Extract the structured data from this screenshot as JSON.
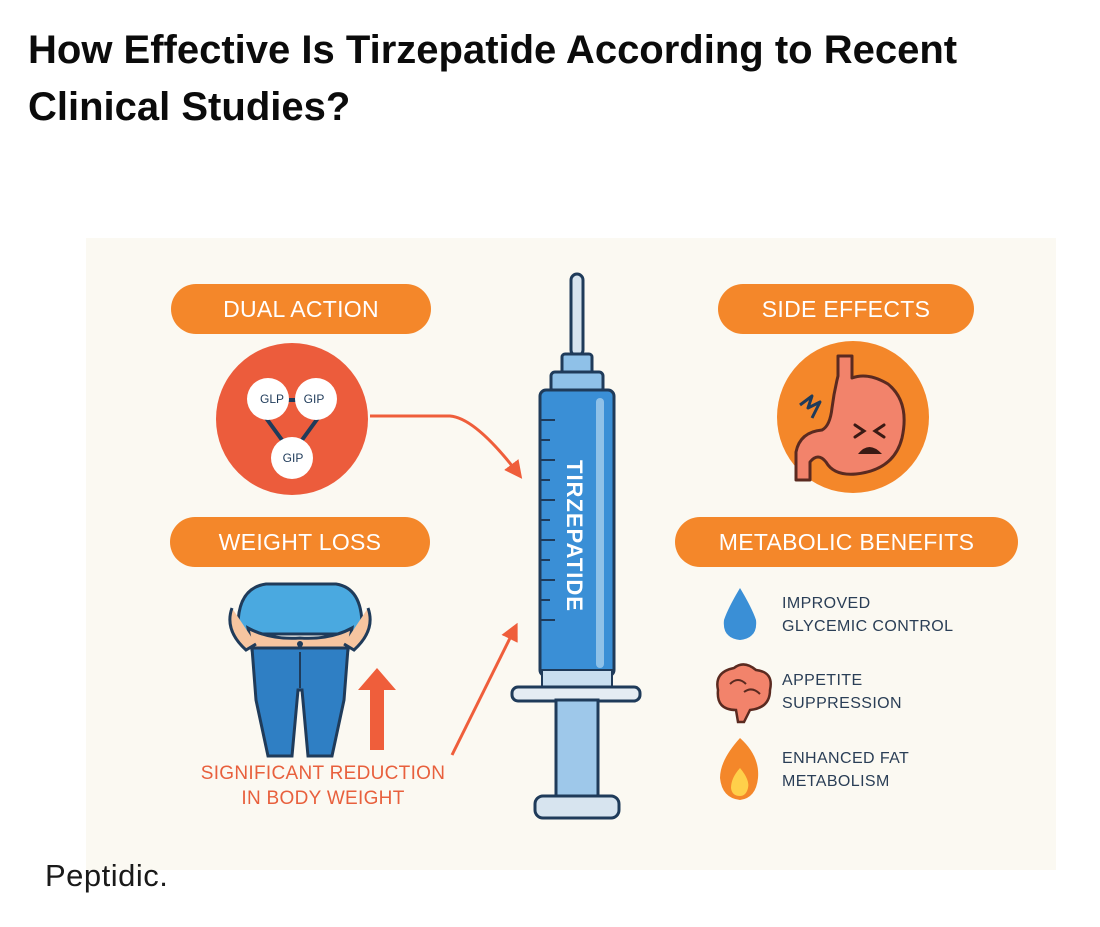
{
  "page": {
    "title": "How Effective Is Tirzepatide According to Recent Clinical Studies?",
    "brand": "Peptidic."
  },
  "infographic": {
    "dual_action": {
      "label": "DUAL ACTION",
      "nodes": [
        "GLP",
        "GIP",
        "GIP"
      ]
    },
    "side_effects": {
      "label": "SIDE EFFECTS"
    },
    "weight_loss": {
      "label": "WEIGHT LOSS",
      "caption_line1": "SIGNIFICANT REDUCTION",
      "caption_line2": "IN BODY WEIGHT"
    },
    "syringe": {
      "label": "TIRZEPATIDE"
    },
    "metabolic_benefits": {
      "label": "METABOLIC BENEFITS",
      "items": [
        {
          "line1": "IMPROVED",
          "line2": "GLYCEMIC CONTROL",
          "icon": "water-drop-icon"
        },
        {
          "line1": "APPETITE",
          "line2": "SUPPRESSION",
          "icon": "brain-icon"
        },
        {
          "line1": "ENHANCED FAT",
          "line2": "METABOLISM",
          "icon": "flame-icon"
        }
      ]
    }
  },
  "colors": {
    "orange": "#f4872a",
    "red_orange": "#ef5e3b",
    "blue": "#3a8fd6",
    "navy": "#1f3b5a",
    "panel": "#fbf9f2"
  }
}
